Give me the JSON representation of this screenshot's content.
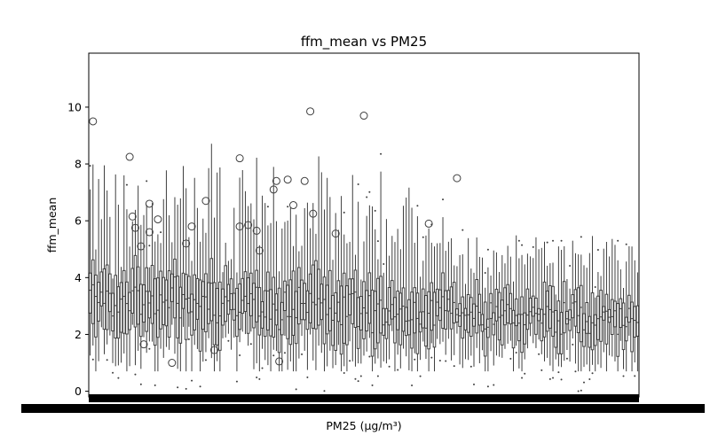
{
  "chart_data": {
    "type": "box",
    "title": "ffm_mean vs PM25",
    "xlabel": "PM25 (μg/m³)",
    "ylabel": "ffm_mean",
    "ylim": [
      -0.2,
      11.9
    ],
    "yticks": [
      0,
      2,
      4,
      6,
      8,
      10
    ],
    "n_categories": 195,
    "x_tick_labels_legible": false,
    "series_color": "#3f3f3f",
    "outliers": [
      {
        "x": 1,
        "y": 9.5
      },
      {
        "x": 14,
        "y": 8.25
      },
      {
        "x": 15,
        "y": 6.15
      },
      {
        "x": 16,
        "y": 5.75
      },
      {
        "x": 18,
        "y": 5.1
      },
      {
        "x": 19,
        "y": 1.65
      },
      {
        "x": 21,
        "y": 6.6
      },
      {
        "x": 21,
        "y": 5.6
      },
      {
        "x": 24,
        "y": 6.05
      },
      {
        "x": 29,
        "y": 1.0
      },
      {
        "x": 34,
        "y": 5.2
      },
      {
        "x": 36,
        "y": 5.8
      },
      {
        "x": 41,
        "y": 6.7
      },
      {
        "x": 44,
        "y": 1.45
      },
      {
        "x": 53,
        "y": 8.2
      },
      {
        "x": 53,
        "y": 5.8
      },
      {
        "x": 56,
        "y": 5.85
      },
      {
        "x": 59,
        "y": 5.65
      },
      {
        "x": 60,
        "y": 4.95
      },
      {
        "x": 65,
        "y": 7.1
      },
      {
        "x": 66,
        "y": 7.4
      },
      {
        "x": 67,
        "y": 1.05
      },
      {
        "x": 70,
        "y": 7.45
      },
      {
        "x": 72,
        "y": 6.55
      },
      {
        "x": 76,
        "y": 7.4
      },
      {
        "x": 79,
        "y": 6.25
      },
      {
        "x": 78,
        "y": 9.85
      },
      {
        "x": 87,
        "y": 5.55
      },
      {
        "x": 97,
        "y": 9.7
      },
      {
        "x": 120,
        "y": 5.9
      },
      {
        "x": 130,
        "y": 7.5
      }
    ]
  }
}
